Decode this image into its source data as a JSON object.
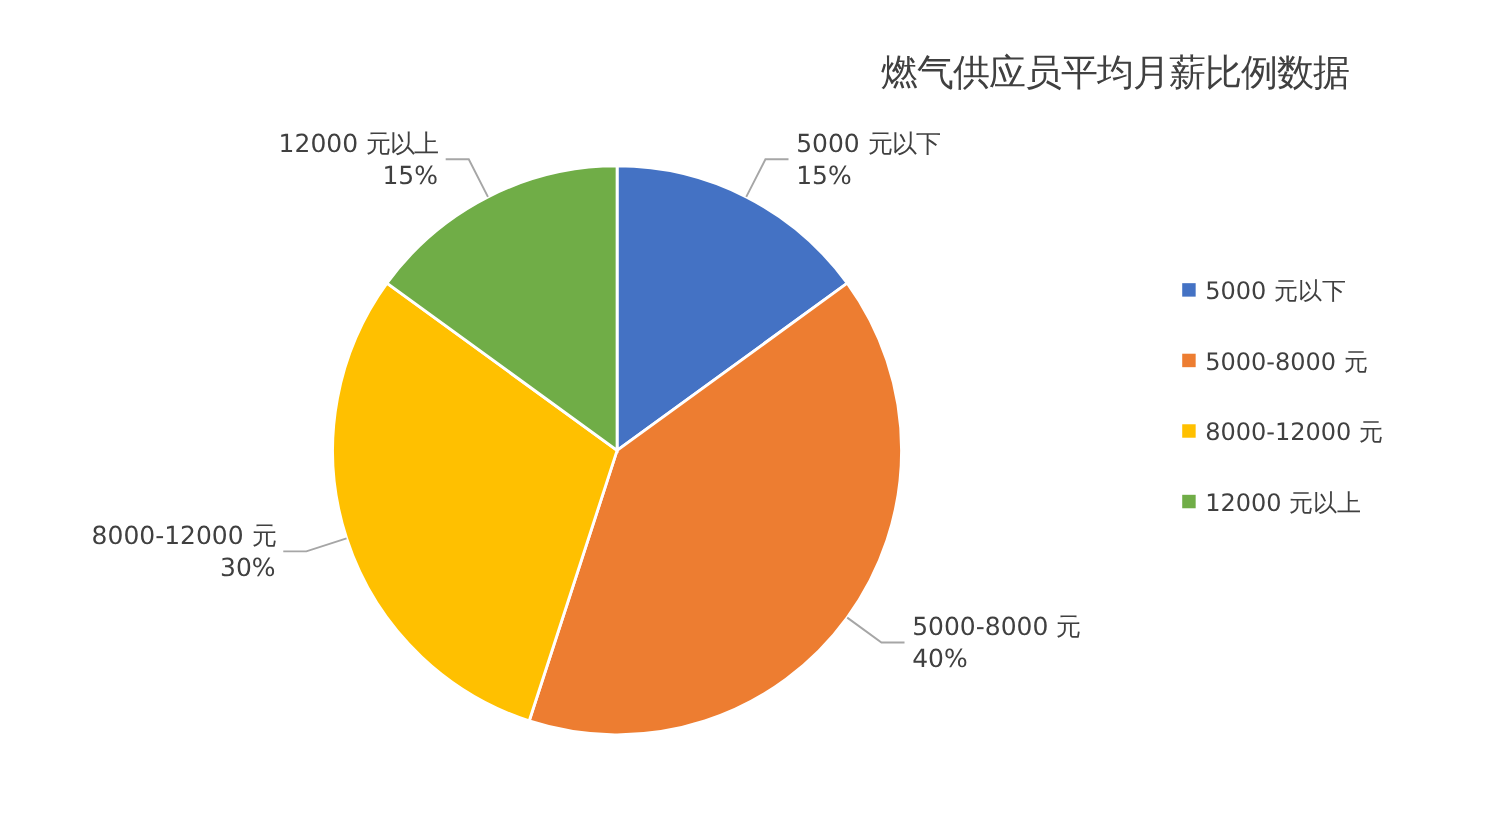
{
  "chart_data": {
    "type": "pie",
    "title": "燃气供应员平均月薪比例数据",
    "categories": [
      "5000 元以下",
      "5000-8000 元",
      "8000-12000 元",
      "12000 元以上"
    ],
    "values": [
      15,
      40,
      30,
      15
    ],
    "value_labels": [
      "15%",
      "40%",
      "30%",
      "15%"
    ],
    "colors": [
      "#4472c4",
      "#ed7d31",
      "#ffc000",
      "#70ad47"
    ],
    "legend": "right"
  }
}
